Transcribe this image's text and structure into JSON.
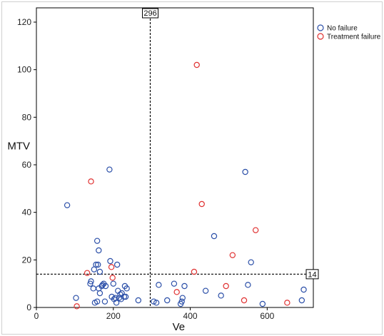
{
  "chart_data": {
    "type": "scatter",
    "title": "",
    "xlabel": "Ve",
    "ylabel": "MTV",
    "xlim": [
      0,
      720
    ],
    "ylim": [
      0,
      126
    ],
    "x_ticks": [
      "0",
      "200",
      "400",
      "600"
    ],
    "y_ticks": [
      "0",
      "20",
      "40",
      "60",
      "80",
      "100",
      "120"
    ],
    "grid": false,
    "legend_position": "top-right",
    "reference_lines": [
      {
        "orientation": "vertical",
        "value": 296,
        "label": "296"
      },
      {
        "orientation": "horizontal",
        "value": 14,
        "label": "14"
      }
    ],
    "series": [
      {
        "name": "No failure",
        "color": "#2b4fa8",
        "points": [
          [
            80,
            43
          ],
          [
            103,
            4
          ],
          [
            140,
            10
          ],
          [
            142,
            11
          ],
          [
            148,
            8
          ],
          [
            150,
            16
          ],
          [
            152,
            2
          ],
          [
            155,
            18
          ],
          [
            158,
            2.5
          ],
          [
            158,
            28
          ],
          [
            160,
            18
          ],
          [
            162,
            24
          ],
          [
            162,
            8
          ],
          [
            165,
            15
          ],
          [
            165,
            6
          ],
          [
            170,
            9
          ],
          [
            172,
            9.5
          ],
          [
            175,
            10
          ],
          [
            178,
            2.5
          ],
          [
            180,
            9
          ],
          [
            190,
            58
          ],
          [
            192,
            19.5
          ],
          [
            196,
            4.5
          ],
          [
            200,
            10
          ],
          [
            202,
            3.5
          ],
          [
            205,
            4
          ],
          [
            208,
            2
          ],
          [
            210,
            18
          ],
          [
            212,
            7
          ],
          [
            215,
            4
          ],
          [
            218,
            5.5
          ],
          [
            220,
            3.5
          ],
          [
            222,
            6
          ],
          [
            228,
            4.5
          ],
          [
            230,
            9
          ],
          [
            232,
            4.5
          ],
          [
            235,
            8
          ],
          [
            265,
            3
          ],
          [
            305,
            2.5
          ],
          [
            312,
            2
          ],
          [
            318,
            9.5
          ],
          [
            340,
            3
          ],
          [
            358,
            10
          ],
          [
            375,
            1.5
          ],
          [
            378,
            2.5
          ],
          [
            380,
            4
          ],
          [
            385,
            9
          ],
          [
            440,
            7
          ],
          [
            462,
            30
          ],
          [
            480,
            5
          ],
          [
            543,
            57
          ],
          [
            550,
            9.5
          ],
          [
            558,
            19
          ],
          [
            588,
            1.5
          ],
          [
            690,
            3
          ],
          [
            695,
            7.5
          ]
        ]
      },
      {
        "name": "Treatment failure",
        "color": "#e03131",
        "points": [
          [
            105,
            0.5
          ],
          [
            132,
            14.5
          ],
          [
            142,
            53
          ],
          [
            195,
            17
          ],
          [
            198,
            12.5
          ],
          [
            365,
            6.5
          ],
          [
            410,
            15
          ],
          [
            417,
            102
          ],
          [
            430,
            43.5
          ],
          [
            493,
            9
          ],
          [
            510,
            22
          ],
          [
            540,
            3
          ],
          [
            570,
            32.5
          ],
          [
            652,
            2
          ]
        ]
      }
    ]
  }
}
